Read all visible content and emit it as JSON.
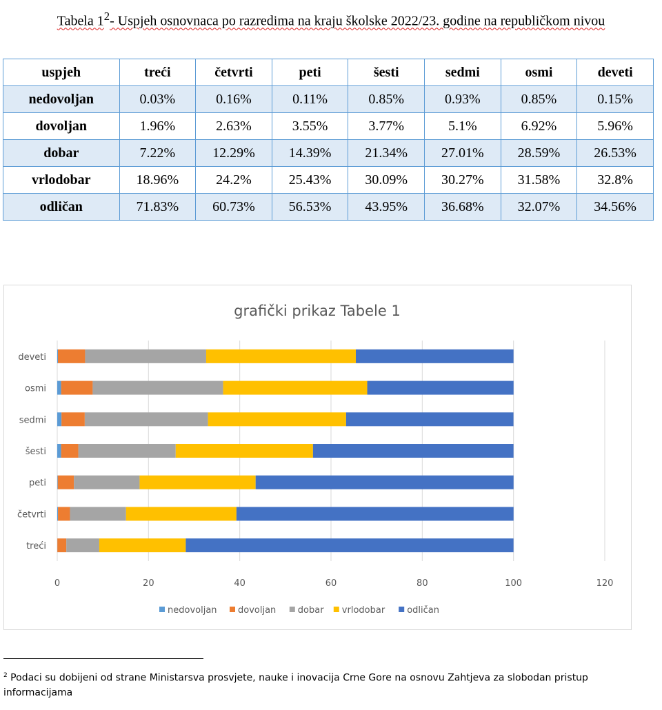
{
  "document": {
    "title_prefix": "Tabela 1",
    "title_sup": "2",
    "title_rest": "- Uspjeh osnovnaca po razredima na kraju školske 2022/23. godine na republičkom nivou",
    "footnote_mark": "2",
    "footnote_text": " Podaci su dobijeni od strane Ministarsva prosvjete, nauke i inovacija Crne Gore na osnovu Zahtjeva za slobodan pristup informacijama"
  },
  "table": {
    "headers": [
      "uspjeh",
      "treći",
      "četvrti",
      "peti",
      "šesti",
      "sedmi",
      "osmi",
      "deveti"
    ],
    "rows": [
      [
        "nedovoljan",
        "0.03%",
        "0.16%",
        "0.11%",
        "0.85%",
        "0.93%",
        "0.85%",
        "0.15%"
      ],
      [
        "dovoljan",
        "1.96%",
        "2.63%",
        "3.55%",
        "3.77%",
        "5.1%",
        "6.92%",
        "5.96%"
      ],
      [
        "dobar",
        "7.22%",
        "12.29%",
        "14.39%",
        "21.34%",
        "27.01%",
        "28.59%",
        "26.53%"
      ],
      [
        "vrlodobar",
        "18.96%",
        "24.2%",
        "25.43%",
        "30.09%",
        "30.27%",
        "31.58%",
        "32.8%"
      ],
      [
        "odličan",
        "71.83%",
        "60.73%",
        "56.53%",
        "43.95%",
        "36.68%",
        "32.07%",
        "34.56%"
      ]
    ]
  },
  "chart_data": {
    "type": "bar",
    "orientation": "horizontal-stacked",
    "title": "grafički prikaz Tabele 1",
    "categories": [
      "treći",
      "četvrti",
      "peti",
      "šesti",
      "sedmi",
      "osmi",
      "deveti"
    ],
    "series": [
      {
        "name": "nedovoljan",
        "color": "#5b9bd5",
        "values": [
          0.03,
          0.16,
          0.11,
          0.85,
          0.93,
          0.85,
          0.15
        ]
      },
      {
        "name": "dovoljan",
        "color": "#ed7d31",
        "values": [
          1.96,
          2.63,
          3.55,
          3.77,
          5.1,
          6.92,
          5.96
        ]
      },
      {
        "name": "dobar",
        "color": "#a5a5a5",
        "values": [
          7.22,
          12.29,
          14.39,
          21.34,
          27.01,
          28.59,
          26.53
        ]
      },
      {
        "name": "vrlodobar",
        "color": "#ffc000",
        "values": [
          18.96,
          24.2,
          25.43,
          30.09,
          30.27,
          31.58,
          32.8
        ]
      },
      {
        "name": "odličan",
        "color": "#4472c4",
        "values": [
          71.83,
          60.73,
          56.53,
          43.95,
          36.68,
          32.07,
          34.56
        ]
      }
    ],
    "xlim": [
      0,
      120
    ],
    "xticks": [
      0,
      20,
      40,
      60,
      80,
      100,
      120
    ],
    "grid": true,
    "legend": "bottom"
  }
}
